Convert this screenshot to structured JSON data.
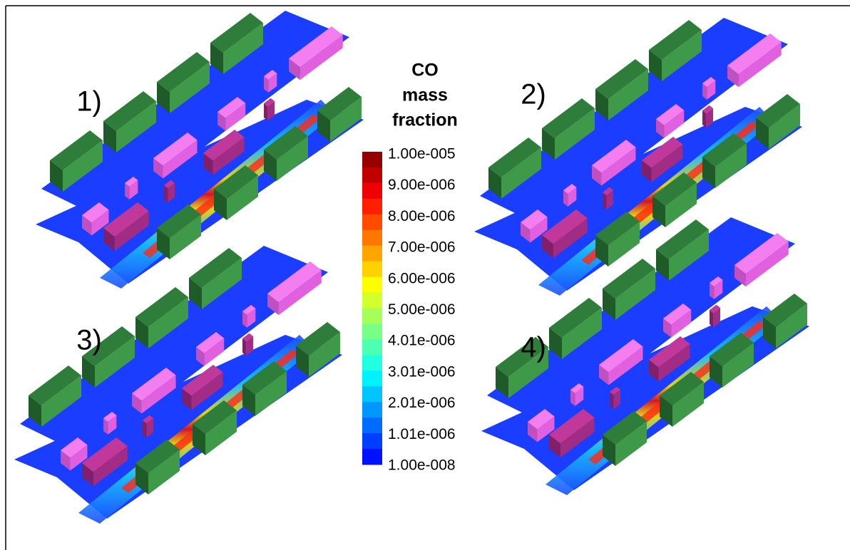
{
  "panels": [
    {
      "label": "1)"
    },
    {
      "label": "2)"
    },
    {
      "label": "3)"
    },
    {
      "label": "4)"
    }
  ],
  "legend": {
    "title": [
      "CO",
      "mass",
      "fraction"
    ],
    "ticks": [
      "1.00e-005",
      "9.00e-006",
      "8.00e-006",
      "7.00e-006",
      "6.00e-006",
      "5.00e-006",
      "4.01e-006",
      "3.01e-006",
      "2.01e-006",
      "1.01e-006",
      "1.00e-008"
    ]
  }
}
